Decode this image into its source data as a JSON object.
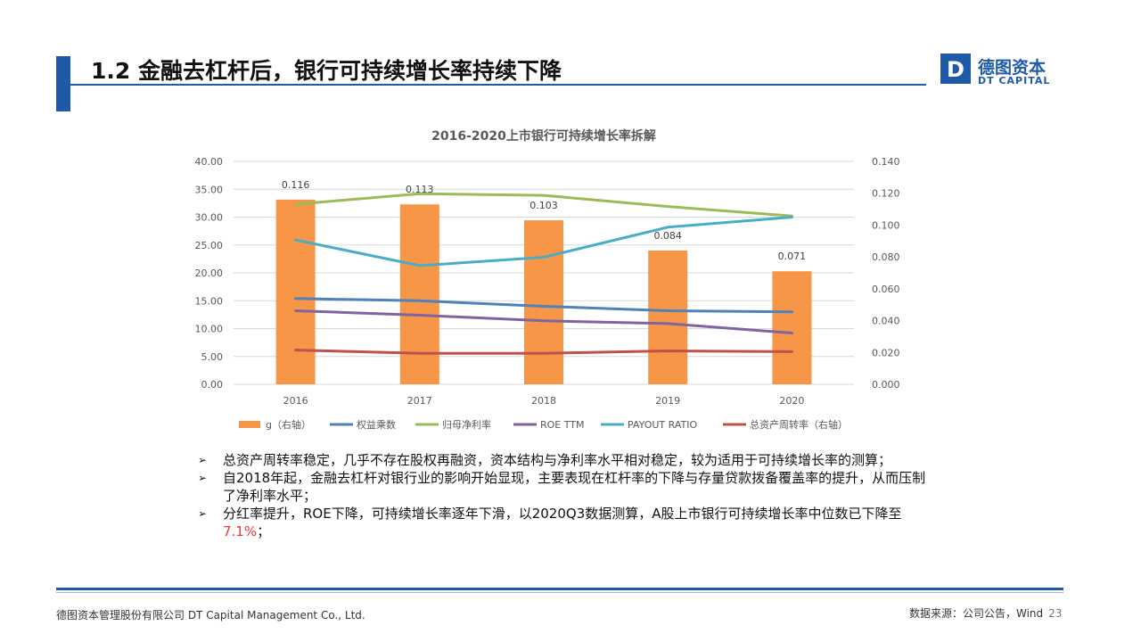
{
  "slide": {
    "title": "1.2 金融去杠杆后，银行可持续增长率持续下降",
    "logo_cn": "德图资本",
    "logo_en": "DT CAPITAL",
    "logo_letter": "D",
    "accent_color": "#1f5aa8"
  },
  "chart_data": {
    "type": "bar+line",
    "title": "2016-2020上市银行可持续增长率拆解",
    "categories": [
      "2016",
      "2017",
      "2018",
      "2019",
      "2020"
    ],
    "left_axis": {
      "min": 0,
      "max": 40,
      "ticks": [
        "0.00",
        "5.00",
        "10.00",
        "15.00",
        "20.00",
        "25.00",
        "30.00",
        "35.00",
        "40.00"
      ]
    },
    "right_axis": {
      "min": 0,
      "max": 0.14,
      "ticks": [
        "0.000",
        "0.020",
        "0.040",
        "0.060",
        "0.080",
        "0.100",
        "0.120",
        "0.140"
      ]
    },
    "bar_series": {
      "name": "g（右轴）",
      "axis": "right",
      "color": "#f79646",
      "values": [
        0.116,
        0.113,
        0.103,
        0.084,
        0.071
      ],
      "labels": [
        "0.116",
        "0.113",
        "0.103",
        "0.084",
        "0.071"
      ]
    },
    "line_series": [
      {
        "name": "权益乘数",
        "axis": "left",
        "color": "#4f81bd",
        "values": [
          15.4,
          15.0,
          14.0,
          13.2,
          13.0
        ]
      },
      {
        "name": "归母净利率",
        "axis": "left",
        "color": "#9bbb59",
        "values": [
          32.3,
          34.2,
          33.9,
          31.9,
          30.2
        ]
      },
      {
        "name": "ROE TTM",
        "axis": "left",
        "color": "#8064a2",
        "values": [
          13.2,
          12.4,
          11.4,
          10.9,
          9.2
        ]
      },
      {
        "name": "PAYOUT RATIO",
        "axis": "left",
        "color": "#4bacc6",
        "values": [
          25.9,
          21.3,
          22.8,
          28.2,
          30.0
        ]
      },
      {
        "name": "总资产周转率（右轴）",
        "axis": "right",
        "color": "#c0504d",
        "values": [
          0.0215,
          0.0195,
          0.0195,
          0.021,
          0.0205
        ]
      }
    ],
    "legend_order": [
      "g（右轴）",
      "权益乘数",
      "归母净利率",
      "ROE TTM",
      "PAYOUT RATIO",
      "总资产周转率（右轴）"
    ],
    "legend_position": "bottom",
    "grid": true
  },
  "bullets": [
    {
      "text": "总资产周转率稳定，几乎不存在股权再融资，资本结构与净利率水平相对稳定，较为适用于可持续增长率的测算；",
      "highlight": "",
      "tail": ""
    },
    {
      "text": "自2018年起，金融去杠杆对银行业的影响开始显现，主要表现在杠杆率的下降与存量贷款拨备覆盖率的提升，从而压制了净利率水平；",
      "highlight": "",
      "tail": ""
    },
    {
      "text": "分红率提升，ROE下降，可持续增长率逐年下滑，以2020Q3数据测算，A股上市银行可持续增长率中位数已下降至",
      "highlight": "7.1%",
      "tail": "；"
    }
  ],
  "footer": {
    "company": "德图资本管理股份有限公司  DT Capital Management  Co., Ltd.",
    "source": "数据来源：公司公告，Wind",
    "page": "23"
  }
}
